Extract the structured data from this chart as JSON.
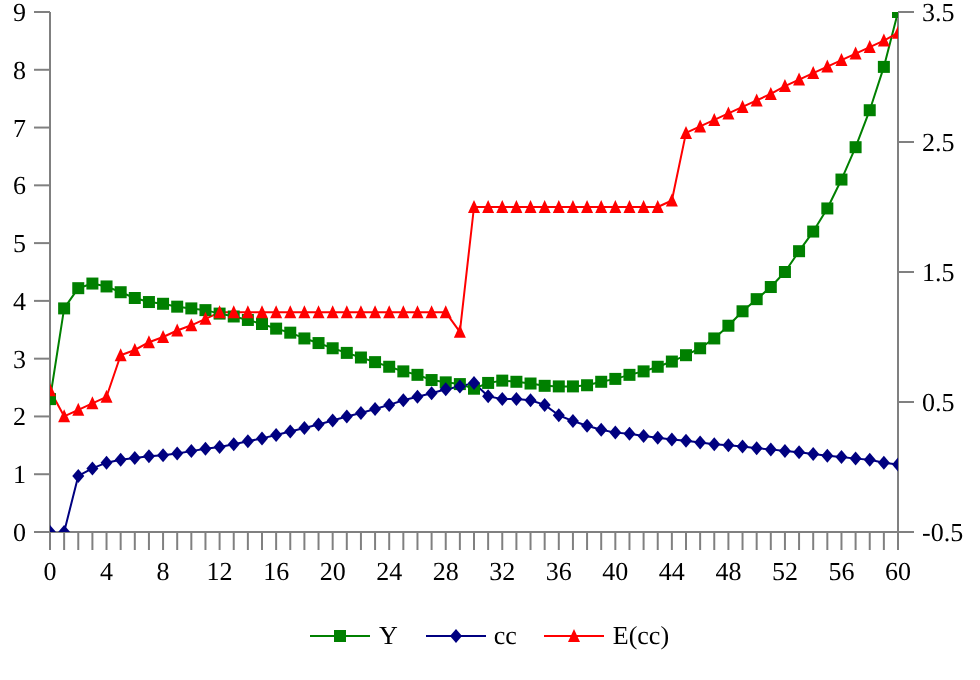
{
  "chart_data": {
    "type": "line",
    "x": [
      0,
      1,
      2,
      3,
      4,
      5,
      6,
      7,
      8,
      9,
      10,
      11,
      12,
      13,
      14,
      15,
      16,
      17,
      18,
      19,
      20,
      21,
      22,
      23,
      24,
      25,
      26,
      27,
      28,
      29,
      30,
      31,
      32,
      33,
      34,
      35,
      36,
      37,
      38,
      39,
      40,
      41,
      42,
      43,
      44,
      45,
      46,
      47,
      48,
      49,
      50,
      51,
      52,
      53,
      54,
      55,
      56,
      57,
      58,
      59,
      60
    ],
    "series": [
      {
        "name": "Y",
        "color": "#008000",
        "marker": "square",
        "values": [
          2.3,
          3.87,
          4.22,
          4.3,
          4.25,
          4.15,
          4.05,
          3.98,
          3.95,
          3.9,
          3.87,
          3.84,
          3.78,
          3.73,
          3.67,
          3.6,
          3.52,
          3.45,
          3.35,
          3.27,
          3.18,
          3.1,
          3.02,
          2.94,
          2.86,
          2.78,
          2.72,
          2.63,
          2.59,
          2.56,
          2.48,
          2.58,
          2.62,
          2.6,
          2.57,
          2.53,
          2.52,
          2.52,
          2.54,
          2.6,
          2.65,
          2.72,
          2.78,
          2.86,
          2.95,
          3.06,
          3.18,
          3.35,
          3.57,
          3.82,
          4.03,
          4.24,
          4.5,
          4.86,
          5.2,
          5.6,
          6.1,
          6.66,
          7.3,
          8.05,
          9.0
        ]
      },
      {
        "name": "cc",
        "color": "#000080",
        "marker": "diamond",
        "values": [
          0,
          0,
          0.97,
          1.1,
          1.2,
          1.25,
          1.28,
          1.31,
          1.33,
          1.36,
          1.4,
          1.44,
          1.47,
          1.52,
          1.57,
          1.62,
          1.68,
          1.74,
          1.8,
          1.86,
          1.93,
          2.0,
          2.06,
          2.13,
          2.2,
          2.28,
          2.34,
          2.4,
          2.47,
          2.52,
          2.58,
          2.35,
          2.3,
          2.3,
          2.28,
          2.2,
          2.02,
          1.92,
          1.84,
          1.77,
          1.72,
          1.7,
          1.66,
          1.63,
          1.6,
          1.58,
          1.55,
          1.52,
          1.5,
          1.48,
          1.45,
          1.43,
          1.4,
          1.38,
          1.35,
          1.32,
          1.3,
          1.27,
          1.25,
          1.2,
          1.17
        ]
      },
      {
        "name": "E(cc)",
        "color": "#ff0000",
        "marker": "triangle",
        "axis": "y2",
        "values": [
          0.59,
          0.39,
          0.44,
          0.49,
          0.54,
          0.86,
          0.9,
          0.96,
          1.0,
          1.05,
          1.09,
          1.14,
          1.19,
          1.19,
          1.19,
          1.19,
          1.19,
          1.19,
          1.19,
          1.19,
          1.19,
          1.19,
          1.19,
          1.19,
          1.19,
          1.19,
          1.19,
          1.19,
          1.19,
          1.04,
          2.0,
          2.0,
          2.0,
          2.0,
          2.0,
          2.0,
          2.0,
          2.0,
          2.0,
          2.0,
          2.0,
          2.0,
          2.0,
          2.0,
          2.05,
          2.57,
          2.62,
          2.67,
          2.72,
          2.77,
          2.82,
          2.87,
          2.93,
          2.98,
          3.03,
          3.08,
          3.13,
          3.18,
          3.23,
          3.28,
          3.34
        ]
      }
    ],
    "xlim": [
      0,
      60
    ],
    "xticks": [
      0,
      {
        "value": 1,
        "label": null
      },
      {
        "value": 2,
        "label": null
      },
      {
        "value": 3,
        "label": null
      },
      4,
      {
        "value": 5,
        "label": null
      },
      {
        "value": 6,
        "label": null
      },
      {
        "value": 7,
        "label": null
      },
      8,
      {
        "value": 9,
        "label": null
      },
      {
        "value": 10,
        "label": null
      },
      {
        "value": 11,
        "label": null
      },
      12,
      {
        "value": 13,
        "label": null
      },
      {
        "value": 14,
        "label": null
      },
      {
        "value": 15,
        "label": null
      },
      16,
      {
        "value": 17,
        "label": null
      },
      {
        "value": 18,
        "label": null
      },
      {
        "value": 19,
        "label": null
      },
      20,
      {
        "value": 21,
        "label": null
      },
      {
        "value": 22,
        "label": null
      },
      {
        "value": 23,
        "label": null
      },
      24,
      {
        "value": 25,
        "label": null
      },
      {
        "value": 26,
        "label": null
      },
      {
        "value": 27,
        "label": null
      },
      28,
      {
        "value": 29,
        "label": null
      },
      {
        "value": 30,
        "label": null
      },
      {
        "value": 31,
        "label": null
      },
      32,
      {
        "value": 33,
        "label": null
      },
      {
        "value": 34,
        "label": null
      },
      {
        "value": 35,
        "label": null
      },
      36,
      {
        "value": 37,
        "label": null
      },
      {
        "value": 38,
        "label": null
      },
      {
        "value": 39,
        "label": null
      },
      40,
      {
        "value": 41,
        "label": null
      },
      {
        "value": 42,
        "label": null
      },
      {
        "value": 43,
        "label": null
      },
      44,
      {
        "value": 45,
        "label": null
      },
      {
        "value": 46,
        "label": null
      },
      {
        "value": 47,
        "label": null
      },
      48,
      {
        "value": 49,
        "label": null
      },
      {
        "value": 50,
        "label": null
      },
      {
        "value": 51,
        "label": null
      },
      52,
      {
        "value": 53,
        "label": null
      },
      {
        "value": 54,
        "label": null
      },
      {
        "value": 55,
        "label": null
      },
      56,
      {
        "value": 57,
        "label": null
      },
      {
        "value": 58,
        "label": null
      },
      {
        "value": 59,
        "label": null
      },
      60
    ],
    "ylim": [
      0,
      9
    ],
    "yticks": [
      0,
      1,
      2,
      3,
      4,
      5,
      6,
      7,
      8,
      9
    ],
    "y2lim": [
      -0.5,
      3.5
    ],
    "y2ticks": [
      -0.5,
      0.5,
      1.5,
      2.5,
      3.5
    ],
    "grid": false,
    "legend": "bottom"
  }
}
